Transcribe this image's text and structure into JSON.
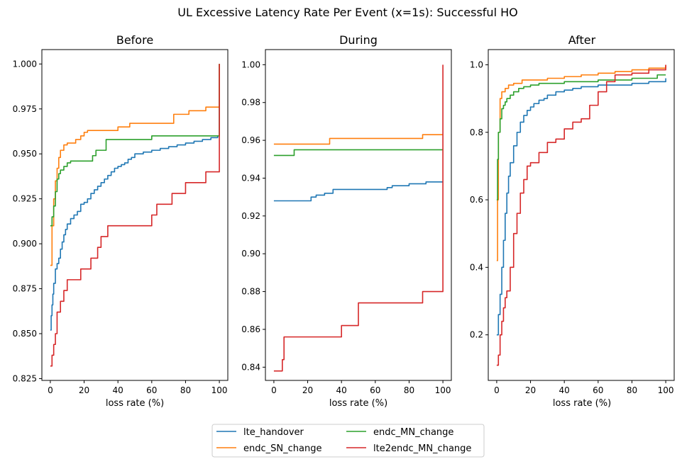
{
  "figure": {
    "suptitle": "UL Excessive Latency Rate Per Event (x=1s): Successful HO"
  },
  "legend": {
    "placement": "bottom-center",
    "columns": 2,
    "entries": [
      {
        "name": "lte_handover",
        "color": "#1f77b4"
      },
      {
        "name": "endc_SN_change",
        "color": "#ff7f0e"
      },
      {
        "name": "endc_MN_change",
        "color": "#2ca02c"
      },
      {
        "name": "lte2endc_MN_change",
        "color": "#d62728"
      }
    ]
  },
  "chart_data": [
    {
      "type": "line",
      "step": true,
      "title": "Before",
      "xlabel": "loss rate (%)",
      "ylabel": "",
      "xlim": [
        -5,
        105
      ],
      "ylim": [
        0.824,
        1.008
      ],
      "xticks": [
        0,
        20,
        40,
        60,
        80,
        100
      ],
      "yticks": [
        0.825,
        0.85,
        0.875,
        0.9,
        0.925,
        0.95,
        0.975,
        1.0
      ],
      "ytick_labels": [
        "0.825",
        "0.850",
        "0.875",
        "0.900",
        "0.925",
        "0.950",
        "0.975",
        "1.000"
      ],
      "series": [
        {
          "name": "lte_handover",
          "color": "#1f77b4",
          "x": [
            0,
            0.5,
            1,
            1.5,
            2,
            3,
            4,
            5,
            6,
            7,
            8,
            9,
            10,
            12,
            14,
            16,
            18,
            20,
            22,
            24,
            26,
            28,
            30,
            32,
            34,
            36,
            38,
            40,
            42,
            44,
            46,
            48,
            50,
            55,
            60,
            65,
            70,
            75,
            80,
            85,
            90,
            95,
            99,
            100,
            100
          ],
          "y": [
            0.852,
            0.86,
            0.866,
            0.872,
            0.878,
            0.886,
            0.889,
            0.892,
            0.897,
            0.901,
            0.905,
            0.908,
            0.911,
            0.914,
            0.916,
            0.918,
            0.922,
            0.923,
            0.925,
            0.928,
            0.93,
            0.932,
            0.934,
            0.936,
            0.938,
            0.94,
            0.942,
            0.943,
            0.944,
            0.945,
            0.947,
            0.948,
            0.95,
            0.951,
            0.952,
            0.953,
            0.954,
            0.955,
            0.956,
            0.957,
            0.958,
            0.959,
            0.96,
            0.962,
            1.0
          ]
        },
        {
          "name": "endc_SN_change",
          "color": "#ff7f0e",
          "x": [
            0,
            1,
            2,
            3,
            4,
            5,
            6,
            8,
            10,
            12,
            15,
            18,
            20,
            22,
            24,
            30,
            35,
            40,
            47,
            55,
            60,
            70,
            73,
            78,
            82,
            88,
            92,
            100,
            100
          ],
          "y": [
            0.888,
            0.91,
            0.925,
            0.935,
            0.942,
            0.948,
            0.952,
            0.955,
            0.956,
            0.956,
            0.958,
            0.96,
            0.962,
            0.963,
            0.963,
            0.963,
            0.963,
            0.965,
            0.967,
            0.967,
            0.967,
            0.967,
            0.972,
            0.972,
            0.974,
            0.974,
            0.976,
            0.976,
            1.0
          ]
        },
        {
          "name": "endc_MN_change",
          "color": "#2ca02c",
          "x": [
            0,
            1,
            2,
            3,
            4,
            5,
            6,
            8,
            10,
            12,
            15,
            20,
            25,
            27,
            30,
            33,
            35,
            40,
            50,
            60,
            70,
            80,
            90,
            99,
            100,
            100
          ],
          "y": [
            0.91,
            0.915,
            0.921,
            0.929,
            0.936,
            0.939,
            0.941,
            0.943,
            0.945,
            0.946,
            0.946,
            0.946,
            0.949,
            0.952,
            0.952,
            0.958,
            0.958,
            0.958,
            0.958,
            0.96,
            0.96,
            0.96,
            0.96,
            0.96,
            0.962,
            1.0
          ]
        },
        {
          "name": "lte2endc_MN_change",
          "color": "#d62728",
          "x": [
            0,
            1,
            2,
            3,
            4,
            6,
            8,
            10,
            14,
            18,
            20,
            24,
            26,
            28,
            30,
            32,
            34,
            36,
            40,
            60,
            63,
            66,
            72,
            80,
            92,
            100,
            100
          ],
          "y": [
            0.832,
            0.838,
            0.844,
            0.85,
            0.862,
            0.868,
            0.874,
            0.88,
            0.88,
            0.886,
            0.886,
            0.892,
            0.892,
            0.898,
            0.904,
            0.904,
            0.91,
            0.91,
            0.91,
            0.916,
            0.922,
            0.922,
            0.928,
            0.934,
            0.94,
            0.94,
            1.0
          ]
        }
      ]
    },
    {
      "type": "line",
      "step": true,
      "title": "During",
      "xlabel": "loss rate (%)",
      "ylabel": "",
      "xlim": [
        -5,
        105
      ],
      "ylim": [
        0.833,
        1.008
      ],
      "xticks": [
        0,
        20,
        40,
        60,
        80,
        100
      ],
      "yticks": [
        0.84,
        0.86,
        0.88,
        0.9,
        0.92,
        0.94,
        0.96,
        0.98,
        1.0
      ],
      "ytick_labels": [
        "0.84",
        "0.86",
        "0.88",
        "0.90",
        "0.92",
        "0.94",
        "0.96",
        "0.98",
        "1.00"
      ],
      "series": [
        {
          "name": "lte_handover",
          "color": "#1f77b4",
          "x": [
            0,
            20,
            22,
            25,
            30,
            35,
            40,
            50,
            60,
            67,
            70,
            75,
            80,
            85,
            90,
            100
          ],
          "y": [
            0.928,
            0.928,
            0.93,
            0.931,
            0.932,
            0.934,
            0.934,
            0.934,
            0.934,
            0.935,
            0.936,
            0.936,
            0.937,
            0.937,
            0.938,
            0.938
          ]
        },
        {
          "name": "endc_SN_change",
          "color": "#ff7f0e",
          "x": [
            0,
            33,
            40,
            60,
            80,
            88,
            95,
            100
          ],
          "y": [
            0.958,
            0.961,
            0.961,
            0.961,
            0.961,
            0.963,
            0.963,
            0.963
          ]
        },
        {
          "name": "endc_MN_change",
          "color": "#2ca02c",
          "x": [
            0,
            12,
            20,
            40,
            60,
            80,
            100
          ],
          "y": [
            0.952,
            0.955,
            0.955,
            0.955,
            0.955,
            0.955,
            0.955
          ]
        },
        {
          "name": "lte2endc_MN_change",
          "color": "#d62728",
          "x": [
            0,
            5,
            6,
            10,
            20,
            30,
            40,
            50,
            60,
            70,
            88,
            90,
            100,
            100
          ],
          "y": [
            0.838,
            0.844,
            0.856,
            0.856,
            0.856,
            0.856,
            0.862,
            0.874,
            0.874,
            0.874,
            0.88,
            0.88,
            0.88,
            1.0
          ]
        }
      ]
    },
    {
      "type": "line",
      "step": true,
      "title": "After",
      "xlabel": "loss rate (%)",
      "ylabel": "",
      "xlim": [
        -5,
        105
      ],
      "ylim": [
        0.065,
        1.045
      ],
      "xticks": [
        0,
        20,
        40,
        60,
        80,
        100
      ],
      "yticks": [
        0.2,
        0.4,
        0.6,
        0.8,
        1.0
      ],
      "ytick_labels": [
        "0.2",
        "0.4",
        "0.6",
        "0.8",
        "1.0"
      ],
      "series": [
        {
          "name": "lte_handover",
          "color": "#1f77b4",
          "x": [
            0,
            1,
            2,
            3,
            4,
            5,
            6,
            7,
            8,
            10,
            12,
            14,
            16,
            18,
            20,
            22,
            25,
            28,
            30,
            35,
            40,
            45,
            50,
            60,
            70,
            80,
            90,
            100
          ],
          "y": [
            0.2,
            0.26,
            0.32,
            0.4,
            0.48,
            0.56,
            0.62,
            0.67,
            0.71,
            0.76,
            0.8,
            0.83,
            0.85,
            0.865,
            0.875,
            0.885,
            0.895,
            0.9,
            0.91,
            0.92,
            0.925,
            0.93,
            0.935,
            0.94,
            0.94,
            0.945,
            0.95,
            0.96
          ]
        },
        {
          "name": "endc_SN_change",
          "color": "#ff7f0e",
          "x": [
            0,
            0.5,
            1,
            2,
            3,
            5,
            7,
            10,
            15,
            20,
            30,
            40,
            50,
            60,
            70,
            80,
            90,
            100
          ],
          "y": [
            0.42,
            0.6,
            0.8,
            0.9,
            0.92,
            0.93,
            0.94,
            0.945,
            0.955,
            0.955,
            0.96,
            0.965,
            0.97,
            0.975,
            0.98,
            0.985,
            0.99,
            1.0
          ]
        },
        {
          "name": "endc_MN_change",
          "color": "#2ca02c",
          "x": [
            0,
            0.5,
            1,
            2,
            3,
            4,
            5,
            6,
            8,
            10,
            13,
            16,
            20,
            25,
            30,
            40,
            50,
            60,
            70,
            80,
            90,
            95,
            100
          ],
          "y": [
            0.6,
            0.72,
            0.8,
            0.84,
            0.87,
            0.88,
            0.89,
            0.9,
            0.91,
            0.92,
            0.93,
            0.935,
            0.94,
            0.945,
            0.945,
            0.95,
            0.95,
            0.955,
            0.955,
            0.96,
            0.96,
            0.97,
            0.97
          ]
        },
        {
          "name": "lte2endc_MN_change",
          "color": "#d62728",
          "x": [
            0,
            1,
            2,
            3,
            4,
            5,
            6,
            8,
            10,
            12,
            14,
            16,
            18,
            20,
            25,
            30,
            35,
            40,
            45,
            50,
            55,
            60,
            65,
            70,
            80,
            90,
            100
          ],
          "y": [
            0.11,
            0.14,
            0.2,
            0.24,
            0.28,
            0.31,
            0.33,
            0.4,
            0.5,
            0.56,
            0.62,
            0.66,
            0.7,
            0.71,
            0.74,
            0.77,
            0.78,
            0.81,
            0.83,
            0.84,
            0.88,
            0.92,
            0.95,
            0.97,
            0.975,
            0.985,
            1.0
          ]
        }
      ]
    }
  ]
}
